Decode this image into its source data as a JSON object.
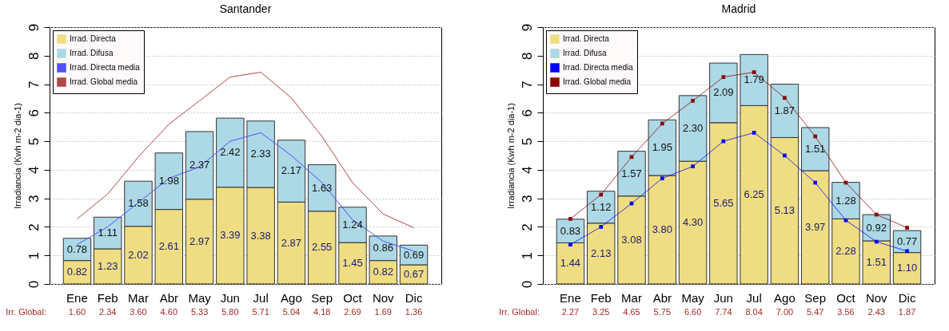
{
  "chart_data": [
    {
      "type": "bar",
      "title": "Santander",
      "ylabel": "Irradiancia (Kwh m-2 dia-1)",
      "categories": [
        "Ene",
        "Feb",
        "Mar",
        "Abr",
        "May",
        "Jun",
        "Jul",
        "Ago",
        "Sep",
        "Oct",
        "Nov",
        "Dic"
      ],
      "series": [
        {
          "name": "Irrad. Directa",
          "color": "#eedd82",
          "values": [
            0.82,
            1.23,
            2.02,
            2.61,
            2.97,
            3.39,
            3.38,
            2.87,
            2.55,
            1.45,
            0.82,
            0.67
          ],
          "value_labels": [
            "0.82",
            "1.23",
            "2.02",
            "2.61",
            "2.97",
            "3.39",
            "3.38",
            "2.87",
            "2.55",
            "1.45",
            "0.82",
            "0.67"
          ]
        },
        {
          "name": "Irrad. Difusa",
          "color": "#add8e6",
          "values": [
            0.78,
            1.11,
            1.58,
            1.98,
            2.37,
            2.42,
            2.33,
            2.17,
            1.63,
            1.24,
            0.86,
            0.69
          ],
          "value_labels": [
            "0.78",
            "1.11",
            "1.58",
            "1.98",
            "2.37",
            "2.42",
            "2.33",
            "2.17",
            "1.63",
            "1.24",
            "0.86",
            "0.69"
          ]
        },
        {
          "name": "Irrad. Directa media",
          "type": "line",
          "color": "#5050ff",
          "values": [
            1.38,
            2.0,
            2.85,
            3.7,
            4.1,
            5.0,
            5.3,
            4.5,
            3.55,
            2.25,
            1.5,
            1.15
          ]
        },
        {
          "name": "Irrad. Global media",
          "type": "line",
          "color": "#b04848",
          "values": [
            2.28,
            3.15,
            4.45,
            5.6,
            6.42,
            7.25,
            7.42,
            6.52,
            5.17,
            3.55,
            2.45,
            1.97
          ]
        }
      ],
      "stacked": true,
      "totals": [
        "1.60",
        "2.34",
        "3.60",
        "4.60",
        "5.33",
        "5.80",
        "5.71",
        "5.04",
        "4.18",
        "2.69",
        "1.69",
        "1.36"
      ],
      "annotations": [
        "Irr. Global:"
      ],
      "ylim": [
        0,
        9
      ],
      "yticks": [
        0,
        1,
        2,
        3,
        4,
        5,
        6,
        7,
        8,
        9
      ],
      "grid": "y",
      "legend": "top left",
      "line_style": "solid"
    },
    {
      "type": "bar",
      "title": "Madrid",
      "ylabel": "Irradiancia (Kwh m-2 dia-1)",
      "categories": [
        "Ene",
        "Feb",
        "Mar",
        "Abr",
        "May",
        "Jun",
        "Jul",
        "Ago",
        "Sep",
        "Oct",
        "Nov",
        "Dic"
      ],
      "series": [
        {
          "name": "Irrad. Directa",
          "color": "#eedd82",
          "values": [
            1.44,
            2.13,
            3.08,
            3.8,
            4.3,
            5.65,
            6.25,
            5.13,
            3.97,
            2.28,
            1.51,
            1.1
          ],
          "value_labels": [
            "1.44",
            "2.13",
            "3.08",
            "3.80",
            "4.30",
            "5.65",
            "6.25",
            "5.13",
            "3.97",
            "2.28",
            "1.51",
            "1.10"
          ]
        },
        {
          "name": "Irrad. Difusa",
          "color": "#add8e6",
          "values": [
            0.83,
            1.12,
            1.57,
            1.95,
            2.3,
            2.09,
            1.79,
            1.87,
            1.51,
            1.28,
            0.92,
            0.77
          ],
          "value_labels": [
            "0.83",
            "1.12",
            "1.57",
            "1.95",
            "2.30",
            "2.09",
            "1.79",
            "1.87",
            "1.51",
            "1.28",
            "0.92",
            "0.77"
          ]
        },
        {
          "name": "Irrad. Directa media",
          "type": "line",
          "color": "#0000ff",
          "values": [
            1.38,
            2.0,
            2.82,
            3.7,
            4.12,
            5.0,
            5.3,
            4.5,
            3.55,
            2.23,
            1.48,
            1.15
          ]
        },
        {
          "name": "Irrad. Global media",
          "type": "line",
          "color": "#8b0000",
          "values": [
            2.28,
            3.13,
            4.45,
            5.62,
            6.42,
            7.25,
            7.42,
            6.52,
            5.17,
            3.55,
            2.43,
            1.97
          ]
        }
      ],
      "stacked": true,
      "totals": [
        "2.27",
        "3.25",
        "4.65",
        "5.75",
        "6.60",
        "7.74",
        "8.04",
        "7.00",
        "5.47",
        "3.56",
        "2.43",
        "1.87"
      ],
      "annotations": [
        "Irr. Global:"
      ],
      "ylim": [
        0,
        9
      ],
      "yticks": [
        0,
        1,
        2,
        3,
        4,
        5,
        6,
        7,
        8,
        9
      ],
      "grid": "y",
      "legend": "top left",
      "marker": "square",
      "line_style": "solid"
    }
  ]
}
